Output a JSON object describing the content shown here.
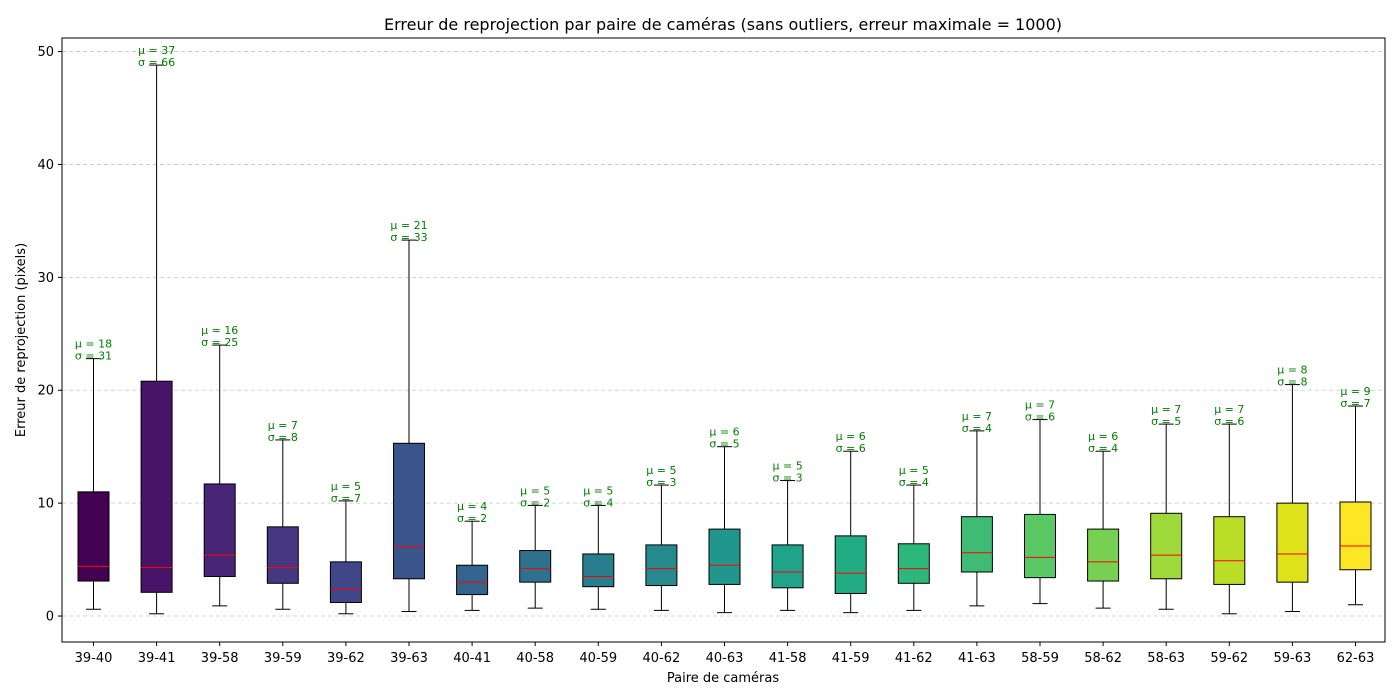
{
  "chart_data": {
    "type": "box",
    "title": "Erreur de reprojection par paire de caméras (sans outliers, erreur maximale = 1000)",
    "xlabel": "Paire de caméras",
    "ylabel": "Erreur de reprojection (pixels)",
    "ylim": [
      -2.3,
      51.2
    ],
    "yticks": [
      0,
      10,
      20,
      30,
      40,
      50
    ],
    "grid": "y-dashed",
    "median_color": "#ff0000",
    "annotation_color": "#008000",
    "boxes": [
      {
        "label": "39-40",
        "whisker_low": 0.6,
        "q1": 3.1,
        "median": 4.4,
        "q3": 11.0,
        "whisker_high": 22.8,
        "mean_text": "μ = 18",
        "std_text": "σ = 31",
        "color": "#440154"
      },
      {
        "label": "39-41",
        "whisker_low": 0.2,
        "q1": 2.1,
        "median": 4.3,
        "q3": 20.8,
        "whisker_high": 48.8,
        "mean_text": "μ = 37",
        "std_text": "σ = 66",
        "color": "#481467"
      },
      {
        "label": "39-58",
        "whisker_low": 0.9,
        "q1": 3.5,
        "median": 5.4,
        "q3": 11.7,
        "whisker_high": 24.0,
        "mean_text": "μ = 16",
        "std_text": "σ = 25",
        "color": "#482576"
      },
      {
        "label": "39-59",
        "whisker_low": 0.6,
        "q1": 2.9,
        "median": 4.3,
        "q3": 7.9,
        "whisker_high": 15.6,
        "mean_text": "μ = 7",
        "std_text": "σ = 8",
        "color": "#453781"
      },
      {
        "label": "39-62",
        "whisker_low": 0.2,
        "q1": 1.2,
        "median": 2.4,
        "q3": 4.8,
        "whisker_high": 10.2,
        "mean_text": "μ = 5",
        "std_text": "σ = 7",
        "color": "#3f4788"
      },
      {
        "label": "39-63",
        "whisker_low": 0.4,
        "q1": 3.3,
        "median": 6.1,
        "q3": 15.3,
        "whisker_high": 33.3,
        "mean_text": "μ = 21",
        "std_text": "σ = 33",
        "color": "#39558c"
      },
      {
        "label": "40-41",
        "whisker_low": 0.5,
        "q1": 1.9,
        "median": 3.0,
        "q3": 4.5,
        "whisker_high": 8.4,
        "mean_text": "μ = 4",
        "std_text": "σ = 2",
        "color": "#32648e"
      },
      {
        "label": "40-58",
        "whisker_low": 0.7,
        "q1": 3.0,
        "median": 4.2,
        "q3": 5.8,
        "whisker_high": 9.8,
        "mean_text": "μ = 5",
        "std_text": "σ = 2",
        "color": "#2d718e"
      },
      {
        "label": "40-59",
        "whisker_low": 0.6,
        "q1": 2.6,
        "median": 3.5,
        "q3": 5.5,
        "whisker_high": 9.8,
        "mean_text": "μ = 5",
        "std_text": "σ = 4",
        "color": "#297e8e"
      },
      {
        "label": "40-62",
        "whisker_low": 0.5,
        "q1": 2.7,
        "median": 4.2,
        "q3": 6.3,
        "whisker_high": 11.6,
        "mean_text": "μ = 5",
        "std_text": "σ = 3",
        "color": "#25898e"
      },
      {
        "label": "40-63",
        "whisker_low": 0.3,
        "q1": 2.8,
        "median": 4.5,
        "q3": 7.7,
        "whisker_high": 15.0,
        "mean_text": "μ = 6",
        "std_text": "σ = 5",
        "color": "#21968d"
      },
      {
        "label": "41-58",
        "whisker_low": 0.5,
        "q1": 2.5,
        "median": 3.9,
        "q3": 6.3,
        "whisker_high": 12.0,
        "mean_text": "μ = 5",
        "std_text": "σ = 3",
        "color": "#1fa38a"
      },
      {
        "label": "41-59",
        "whisker_low": 0.3,
        "q1": 2.0,
        "median": 3.8,
        "q3": 7.1,
        "whisker_high": 14.6,
        "mean_text": "μ = 6",
        "std_text": "σ = 6",
        "color": "#22ac83"
      },
      {
        "label": "41-62",
        "whisker_low": 0.5,
        "q1": 2.9,
        "median": 4.2,
        "q3": 6.4,
        "whisker_high": 11.6,
        "mean_text": "μ = 5",
        "std_text": "σ = 4",
        "color": "#2db87b"
      },
      {
        "label": "41-63",
        "whisker_low": 0.9,
        "q1": 3.9,
        "median": 5.6,
        "q3": 8.8,
        "whisker_high": 16.4,
        "mean_text": "μ = 7",
        "std_text": "σ = 4",
        "color": "#3fbc73"
      },
      {
        "label": "58-59",
        "whisker_low": 1.1,
        "q1": 3.4,
        "median": 5.2,
        "q3": 9.0,
        "whisker_high": 17.4,
        "mean_text": "μ = 7",
        "std_text": "σ = 6",
        "color": "#5ac864"
      },
      {
        "label": "58-62",
        "whisker_low": 0.7,
        "q1": 3.1,
        "median": 4.8,
        "q3": 7.7,
        "whisker_high": 14.6,
        "mean_text": "μ = 6",
        "std_text": "σ = 4",
        "color": "#77d052"
      },
      {
        "label": "58-63",
        "whisker_low": 0.6,
        "q1": 3.3,
        "median": 5.4,
        "q3": 9.1,
        "whisker_high": 17.0,
        "mean_text": "μ = 7",
        "std_text": "σ = 5",
        "color": "#9dd93b"
      },
      {
        "label": "59-62",
        "whisker_low": 0.2,
        "q1": 2.8,
        "median": 4.9,
        "q3": 8.8,
        "whisker_high": 17.0,
        "mean_text": "μ = 7",
        "std_text": "σ = 6",
        "color": "#bade28"
      },
      {
        "label": "59-63",
        "whisker_low": 0.4,
        "q1": 3.0,
        "median": 5.5,
        "q3": 10.0,
        "whisker_high": 20.5,
        "mean_text": "μ = 8",
        "std_text": "σ = 8",
        "color": "#dde318"
      },
      {
        "label": "62-63",
        "whisker_low": 1.0,
        "q1": 4.1,
        "median": 6.2,
        "q3": 10.1,
        "whisker_high": 18.6,
        "mean_text": "μ = 9",
        "std_text": "σ = 7",
        "color": "#fde725"
      }
    ]
  }
}
